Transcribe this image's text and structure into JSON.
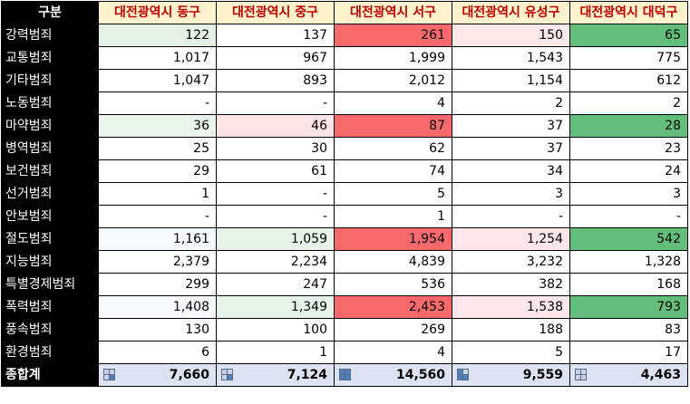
{
  "table": {
    "corner_label": "구분",
    "columns": [
      "대전광역시 동구",
      "대전광역시 중구",
      "대전광역시 서구",
      "대전광역시 유성구",
      "대전광역시 대덕구"
    ],
    "rows": [
      {
        "label": "강력범죄",
        "values": [
          "122",
          "137",
          "261",
          "150",
          "65"
        ],
        "colors": [
          "#e3f1e5",
          "#ffffff",
          "#f8696b",
          "#fde8ea",
          "#63be7b"
        ]
      },
      {
        "label": "교통범죄",
        "values": [
          "1,017",
          "967",
          "1,999",
          "1,543",
          "775"
        ],
        "colors": [
          "#ffffff",
          "#ffffff",
          "#ffffff",
          "#ffffff",
          "#ffffff"
        ]
      },
      {
        "label": "기타범죄",
        "values": [
          "1,047",
          "893",
          "2,012",
          "1,154",
          "612"
        ],
        "colors": [
          "#ffffff",
          "#ffffff",
          "#ffffff",
          "#ffffff",
          "#ffffff"
        ]
      },
      {
        "label": "노동범죄",
        "values": [
          "-",
          "-",
          "4",
          "2",
          "2"
        ],
        "colors": [
          "#ffffff",
          "#ffffff",
          "#ffffff",
          "#ffffff",
          "#ffffff"
        ]
      },
      {
        "label": "마약범죄",
        "values": [
          "36",
          "46",
          "87",
          "37",
          "28"
        ],
        "colors": [
          "#eaf5ec",
          "#fde3e6",
          "#f8696b",
          "#ffffff",
          "#63be7b"
        ]
      },
      {
        "label": "병역범죄",
        "values": [
          "25",
          "30",
          "62",
          "37",
          "23"
        ],
        "colors": [
          "#ffffff",
          "#ffffff",
          "#ffffff",
          "#ffffff",
          "#ffffff"
        ]
      },
      {
        "label": "보건범죄",
        "values": [
          "29",
          "61",
          "74",
          "34",
          "24"
        ],
        "colors": [
          "#ffffff",
          "#ffffff",
          "#ffffff",
          "#ffffff",
          "#ffffff"
        ]
      },
      {
        "label": "선거범죄",
        "values": [
          "1",
          "-",
          "5",
          "3",
          "3"
        ],
        "colors": [
          "#ffffff",
          "#ffffff",
          "#ffffff",
          "#ffffff",
          "#ffffff"
        ]
      },
      {
        "label": "안보범죄",
        "values": [
          "-",
          "-",
          "1",
          "-",
          "-"
        ],
        "colors": [
          "#ffffff",
          "#ffffff",
          "#ffffff",
          "#ffffff",
          "#ffffff"
        ]
      },
      {
        "label": "절도범죄",
        "values": [
          "1,161",
          "1,059",
          "1,954",
          "1,254",
          "542"
        ],
        "colors": [
          "#f6f9fd",
          "#e6f3e8",
          "#f8696b",
          "#fde7ea",
          "#63be7b"
        ]
      },
      {
        "label": "지능범죄",
        "values": [
          "2,379",
          "2,234",
          "4,839",
          "3,232",
          "1,328"
        ],
        "colors": [
          "#ffffff",
          "#ffffff",
          "#ffffff",
          "#ffffff",
          "#ffffff"
        ]
      },
      {
        "label": "특별경제범죄",
        "values": [
          "299",
          "247",
          "536",
          "382",
          "168"
        ],
        "colors": [
          "#ffffff",
          "#ffffff",
          "#ffffff",
          "#ffffff",
          "#ffffff"
        ]
      },
      {
        "label": "폭력범죄",
        "values": [
          "1,408",
          "1,349",
          "2,453",
          "1,538",
          "793"
        ],
        "colors": [
          "#f6f9fd",
          "#e6f3e8",
          "#f8696b",
          "#fde7ea",
          "#63be7b"
        ]
      },
      {
        "label": "풍속범죄",
        "values": [
          "130",
          "100",
          "269",
          "188",
          "83"
        ],
        "colors": [
          "#ffffff",
          "#ffffff",
          "#ffffff",
          "#ffffff",
          "#ffffff"
        ]
      },
      {
        "label": "환경범죄",
        "values": [
          "6",
          "1",
          "4",
          "5",
          "17"
        ],
        "colors": [
          "#ffffff",
          "#ffffff",
          "#ffffff",
          "#ffffff",
          "#ffffff"
        ]
      }
    ],
    "total": {
      "label": "종합계",
      "values": [
        "7,660",
        "7,124",
        "14,560",
        "9,559",
        "4,463"
      ],
      "icon_name": "grid-quarter-icon",
      "icon_fill": [
        [
          "#c9d3e8",
          "#c9d3e8",
          "#c9d3e8",
          "#4f7fbe"
        ],
        [
          "#c9d3e8",
          "#c9d3e8",
          "#c9d3e8",
          "#4f7fbe"
        ],
        [
          "#4f7fbe",
          "#4f7fbe",
          "#4f7fbe",
          "#4f7fbe"
        ],
        [
          "#4f7fbe",
          "#c9d3e8",
          "#4f7fbe",
          "#4f7fbe"
        ],
        [
          "#c9d3e8",
          "#c9d3e8",
          "#c9d3e8",
          "#c9d3e8"
        ]
      ]
    }
  }
}
